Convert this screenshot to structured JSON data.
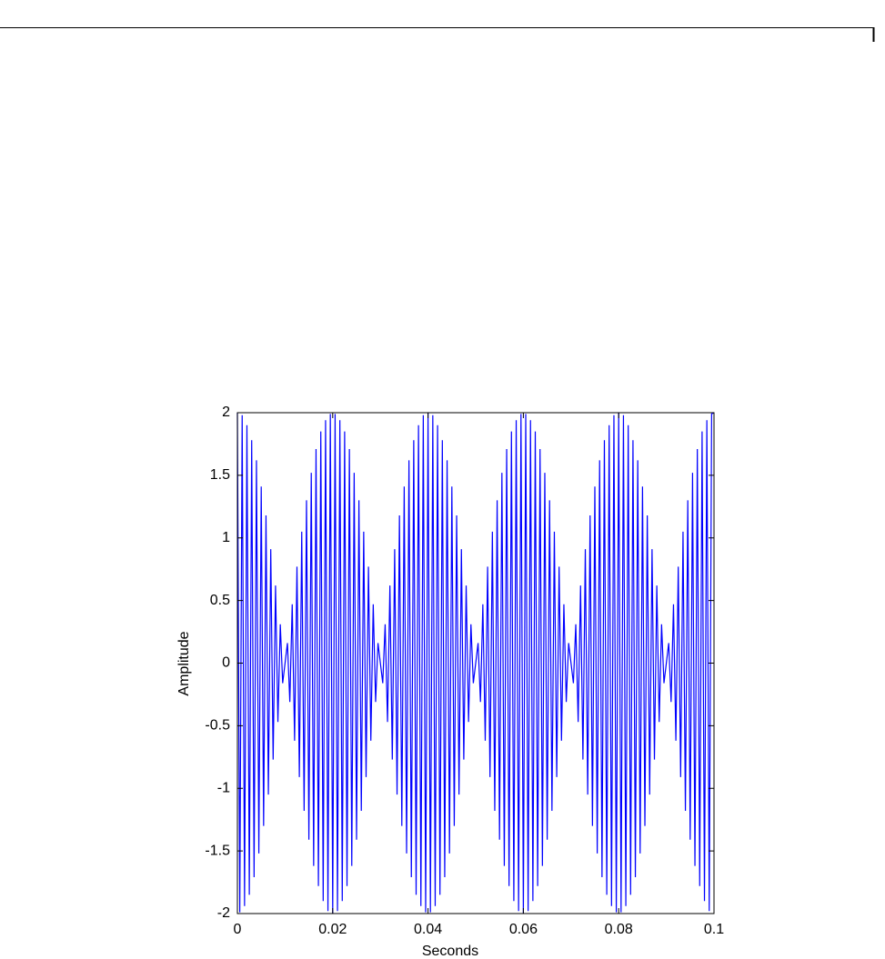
{
  "chart_data": {
    "type": "line",
    "xlabel": "Seconds",
    "ylabel": "Amplitude",
    "color": "#0000ff",
    "xlim": [
      0,
      0.1
    ],
    "ylim": [
      -2,
      2
    ],
    "xticks": [
      0,
      0.02,
      0.04,
      0.06,
      0.08,
      0.1
    ],
    "yticks": [
      -2,
      -1.5,
      -1,
      -0.5,
      0,
      0.5,
      1,
      1.5,
      2
    ],
    "x": [
      0,
      0.0005,
      0.001,
      0.0015,
      0.002,
      0.0025,
      0.003,
      0.0035,
      0.004,
      0.0045,
      0.005,
      0.0055,
      0.006,
      0.0065,
      0.007,
      0.0075,
      0.008,
      0.0085,
      0.009,
      0.0095,
      0.01,
      0.0105,
      0.011,
      0.0115,
      0.012,
      0.0125,
      0.013,
      0.0135,
      0.014,
      0.0145,
      0.015,
      0.0155,
      0.016,
      0.0165,
      0.017,
      0.0175,
      0.018,
      0.0185,
      0.019,
      0.0195,
      0.02,
      0.0205,
      0.021,
      0.0215,
      0.022,
      0.0225,
      0.023,
      0.0235,
      0.024,
      0.0245,
      0.025,
      0.0255,
      0.026,
      0.0265,
      0.027,
      0.0275,
      0.028,
      0.0285,
      0.029,
      0.0295,
      0.03,
      0.0305,
      0.031,
      0.0315,
      0.032,
      0.0325,
      0.033,
      0.0335,
      0.034,
      0.0345,
      0.035,
      0.0355,
      0.036,
      0.0365,
      0.037,
      0.0375,
      0.038,
      0.0385,
      0.039,
      0.0395,
      0.04,
      0.0405,
      0.041,
      0.0415,
      0.042,
      0.0425,
      0.043,
      0.0435,
      0.044,
      0.0445,
      0.045,
      0.0455,
      0.046,
      0.0465,
      0.047,
      0.0475,
      0.048,
      0.0485,
      0.049,
      0.0495,
      0.05,
      0.0505,
      0.051,
      0.0515,
      0.052,
      0.0525,
      0.053,
      0.0535,
      0.054,
      0.0545,
      0.055,
      0.0555,
      0.056,
      0.0565,
      0.057,
      0.0575,
      0.058,
      0.0585,
      0.059,
      0.0595,
      0.06,
      0.0605,
      0.061,
      0.0615,
      0.062,
      0.0625,
      0.063,
      0.0635,
      0.064,
      0.0645,
      0.065,
      0.0655,
      0.066,
      0.0665,
      0.067,
      0.0675,
      0.068,
      0.0685,
      0.069,
      0.0695,
      0.07,
      0.0705,
      0.071,
      0.0715,
      0.072,
      0.0725,
      0.073,
      0.0735,
      0.074,
      0.0745,
      0.075,
      0.0755,
      0.076,
      0.0765,
      0.077,
      0.0775,
      0.078,
      0.0785,
      0.079,
      0.0795,
      0.08,
      0.0805,
      0.081,
      0.0815,
      0.082,
      0.0825,
      0.083,
      0.0835,
      0.084,
      0.0845,
      0.085,
      0.0855,
      0.086,
      0.0865,
      0.087,
      0.0875,
      0.088,
      0.0885,
      0.089,
      0.0895,
      0.09,
      0.0905,
      0.091,
      0.0915,
      0.092,
      0.0925,
      0.093,
      0.0935,
      0.094,
      0.0945,
      0.095,
      0.0955,
      0.096,
      0.0965,
      0.097,
      0.0975,
      0.098,
      0.0985,
      0.099,
      0.0995,
      0.1
    ],
    "values": [
      2,
      -1.99,
      1.98,
      -1.94,
      1.9,
      -1.85,
      1.78,
      -1.71,
      1.62,
      -1.52,
      1.41,
      -1.3,
      1.18,
      -1.05,
      0.91,
      -0.77,
      0.62,
      -0.47,
      0.31,
      -0.16,
      0,
      0.16,
      -0.31,
      0.47,
      -0.62,
      0.77,
      -0.91,
      1.05,
      -1.18,
      1.3,
      -1.41,
      1.52,
      -1.62,
      1.71,
      -1.78,
      1.85,
      -1.9,
      1.94,
      -1.98,
      1.99,
      -2,
      1.99,
      -1.98,
      1.94,
      -1.9,
      1.85,
      -1.78,
      1.71,
      -1.62,
      1.52,
      -1.41,
      1.3,
      -1.18,
      1.05,
      -0.91,
      0.77,
      -0.62,
      0.47,
      -0.31,
      0.16,
      0,
      -0.16,
      0.31,
      -0.47,
      0.62,
      -0.77,
      0.91,
      -1.05,
      1.18,
      -1.3,
      1.41,
      -1.52,
      1.62,
      -1.71,
      1.78,
      -1.85,
      1.9,
      -1.94,
      1.98,
      -1.99,
      2,
      -1.99,
      1.98,
      -1.94,
      1.9,
      -1.85,
      1.78,
      -1.71,
      1.62,
      -1.52,
      1.41,
      -1.3,
      1.18,
      -1.05,
      0.91,
      -0.77,
      0.62,
      -0.47,
      0.31,
      -0.16,
      0,
      0.16,
      -0.31,
      0.47,
      -0.62,
      0.77,
      -0.91,
      1.05,
      -1.18,
      1.3,
      -1.41,
      1.52,
      -1.62,
      1.71,
      -1.78,
      1.85,
      -1.9,
      1.94,
      -1.98,
      1.99,
      -2,
      1.99,
      -1.98,
      1.94,
      -1.9,
      1.85,
      -1.78,
      1.71,
      -1.62,
      1.52,
      -1.41,
      1.3,
      -1.18,
      1.05,
      -0.91,
      0.77,
      -0.62,
      0.47,
      -0.31,
      0.16,
      0,
      -0.16,
      0.31,
      -0.47,
      0.62,
      -0.77,
      0.91,
      -1.05,
      1.18,
      -1.3,
      1.41,
      -1.52,
      1.62,
      -1.71,
      1.78,
      -1.85,
      1.9,
      -1.94,
      1.98,
      -1.99,
      2,
      -1.99,
      1.98,
      -1.94,
      1.9,
      -1.85,
      1.78,
      -1.71,
      1.62,
      -1.52,
      1.41,
      -1.3,
      1.18,
      -1.05,
      0.91,
      -0.77,
      0.62,
      -0.47,
      0.31,
      -0.16,
      0,
      0.16,
      -0.31,
      0.47,
      -0.62,
      0.77,
      -0.91,
      1.05,
      -1.18,
      1.3,
      -1.41,
      1.52,
      -1.62,
      1.71,
      -1.78,
      1.85,
      -1.9,
      1.94,
      -1.98,
      1.99,
      2
    ]
  }
}
